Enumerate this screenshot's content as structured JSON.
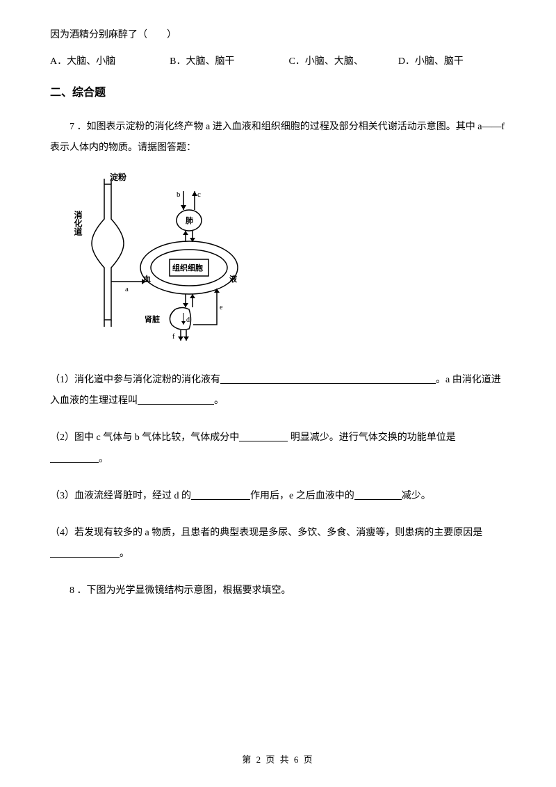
{
  "q_continued": {
    "stem": "因为酒精分别麻醉了（　　）",
    "options": {
      "a": "A．大脑、小脑",
      "b": "B．大脑、脑干",
      "c": "C．小脑、大脑、",
      "d": "D．小脑、脑干"
    }
  },
  "section2_title": "二、综合题",
  "q7": {
    "intro": "7 ．如图表示淀粉的消化终产物 a 进入血液和组织细胞的过程及部分相关代谢活动示意图。其中 a——f 表示人体内的物质。请据图答题：",
    "diagram": {
      "labels": {
        "starch": "淀粉",
        "digestive_tract": "消化道",
        "lung": "肺",
        "blood": "血",
        "tissue_cell": "组织细胞",
        "fluid": "液",
        "kidney": "肾脏",
        "a": "a",
        "b": "b",
        "c": "c",
        "d": "d",
        "e": "e",
        "f": "f"
      },
      "colors": {
        "line": "#000000",
        "fill": "#ffffff"
      }
    },
    "sub1_part1": "（1）消化道中参与消化淀粉的消化液有",
    "sub1_part2": "。a 由消化道进入血液的生理过程叫",
    "sub1_part3": "。",
    "sub2_part1": "（2）图中 c 气体与 b 气体比较，气体成分中",
    "sub2_part2": " 明显减少。进行气体交换的功能单位是",
    "sub2_part3": "。",
    "sub3_part1": "（3）血液流经肾脏时，经过 d 的",
    "sub3_part2": "作用后，e 之后血液中的",
    "sub3_part3": "减少。",
    "sub4_part1": "（4）若发现有较多的 a 物质，且患者的典型表现是多尿、多饮、多食、消瘦等，则患病的主要原因是",
    "sub4_part2": "。"
  },
  "q8": {
    "text": "8 ．下图为光学显微镜结构示意图，根据要求填空。"
  },
  "footer": "第 2 页 共 6 页",
  "blank_widths": {
    "w1": 310,
    "w2": 110,
    "w3": 70,
    "w4": 70,
    "w5": 85,
    "w6": 68,
    "w7": 100
  }
}
